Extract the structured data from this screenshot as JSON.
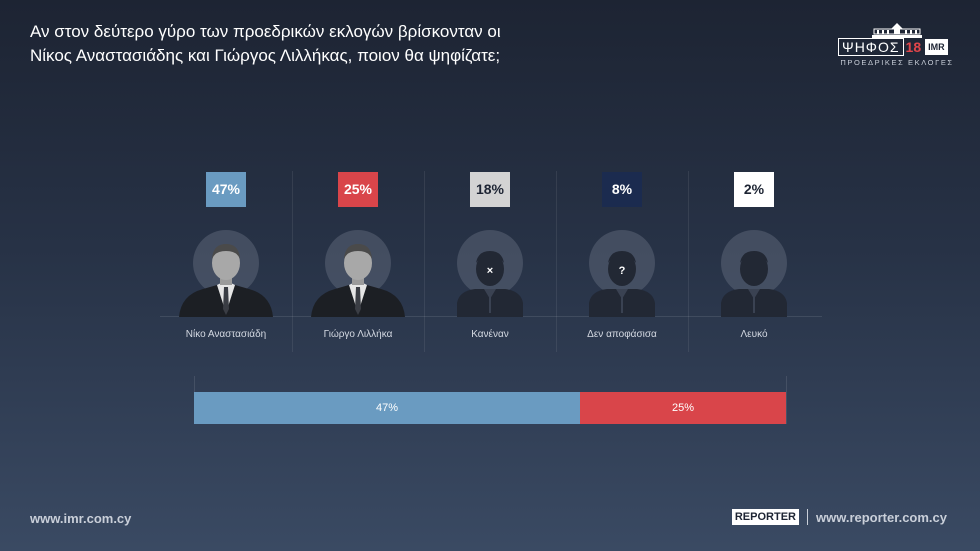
{
  "title_lines": [
    "Αν στον δεύτερο γύρο των προεδρικών εκλογών βρίσκονταν οι",
    "Νίκος Αναστασιάδης και Γιώργος Λιλλήκας, ποιον θα ψηφίζατε;"
  ],
  "logo": {
    "word": "ΨΗΦΟΣ",
    "number": "18",
    "badge": "IMR",
    "subtitle": "ΠΡΟΕΔΡΙΚΕΣ ΕΚΛΟΓΕΣ",
    "number_color": "#e0454a"
  },
  "chart_data": {
    "type": "bar",
    "categories": [
      "Νίκο Αναστασιάδη",
      "Γιώργο Λιλλήκα",
      "Κανέναν",
      "Δεν αποφάσισα",
      "Λευκό"
    ],
    "values": [
      47,
      25,
      18,
      8,
      2
    ],
    "value_labels": [
      "47%",
      "25%",
      "18%",
      "8%",
      "2%"
    ],
    "unit": "%",
    "colors": [
      "#6a9bc1",
      "#d9454a",
      "#d3d3d3",
      "#1b2b4f",
      "#ffffff"
    ],
    "label_text_colors": [
      "#ffffff",
      "#ffffff",
      "#1d2433",
      "#ffffff",
      "#1d2433"
    ],
    "avatars": [
      "photo",
      "photo",
      "silhouette-x",
      "silhouette-question",
      "silhouette"
    ],
    "stacked_bar": {
      "segments": [
        {
          "label": "47%",
          "value": 47,
          "color": "#6a9bc1"
        },
        {
          "label": "25%",
          "value": 25,
          "color": "#d9454a"
        }
      ]
    }
  },
  "footer": {
    "left_url": "www.imr.com.cy",
    "reporter_logo": "REPORTER",
    "right_url": "www.reporter.com.cy"
  }
}
